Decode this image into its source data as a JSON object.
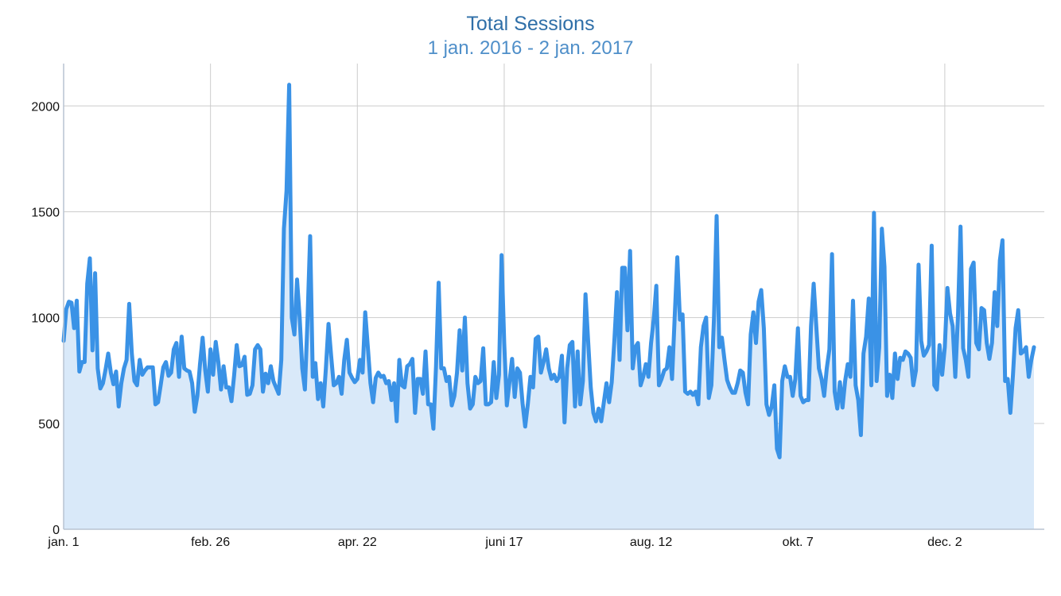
{
  "chart_data": {
    "type": "area",
    "title": "Total Sessions",
    "subtitle": "1 jan. 2016 - 2 jan. 2017",
    "x_tick_labels": [
      "jan. 1",
      "feb. 26",
      "apr. 22",
      "juni 17",
      "aug. 12",
      "okt. 7",
      "dec. 2"
    ],
    "y_ticks": [
      0,
      500,
      1000,
      1500,
      2000
    ],
    "ylim": [
      0,
      2200
    ],
    "grid": true,
    "x_start": "2016-01-01",
    "x_end": "2017-01-02",
    "colors": {
      "line": "#3a92e6",
      "fill": "#d9e9f9",
      "grid": "#cccccc",
      "axis": "#b8c4d2"
    },
    "values": [
      890,
      1040,
      1075,
      1070,
      950,
      1080,
      745,
      790,
      790,
      1160,
      1280,
      845,
      1210,
      760,
      665,
      690,
      755,
      830,
      740,
      685,
      745,
      580,
      690,
      760,
      800,
      1065,
      830,
      700,
      680,
      800,
      730,
      750,
      765,
      765,
      765,
      590,
      600,
      680,
      765,
      790,
      725,
      740,
      850,
      880,
      720,
      910,
      760,
      750,
      745,
      690,
      555,
      630,
      780,
      905,
      750,
      650,
      850,
      730,
      885,
      790,
      660,
      770,
      670,
      670,
      605,
      725,
      870,
      770,
      775,
      815,
      635,
      640,
      680,
      850,
      870,
      850,
      650,
      735,
      690,
      770,
      700,
      670,
      640,
      800,
      1420,
      1600,
      2100,
      1000,
      920,
      1180,
      1000,
      760,
      660,
      990,
      1385,
      720,
      785,
      615,
      690,
      580,
      760,
      970,
      820,
      680,
      690,
      720,
      640,
      800,
      895,
      740,
      715,
      695,
      710,
      800,
      740,
      1025,
      860,
      690,
      600,
      715,
      740,
      720,
      725,
      690,
      700,
      610,
      690,
      510,
      800,
      680,
      670,
      770,
      780,
      805,
      550,
      710,
      710,
      640,
      840,
      590,
      590,
      475,
      770,
      1165,
      760,
      760,
      700,
      720,
      585,
      630,
      740,
      940,
      750,
      1000,
      690,
      570,
      590,
      720,
      690,
      700,
      855,
      590,
      590,
      600,
      790,
      620,
      730,
      1295,
      880,
      585,
      695,
      805,
      625,
      760,
      740,
      595,
      485,
      590,
      720,
      670,
      900,
      910,
      740,
      790,
      850,
      760,
      710,
      730,
      700,
      720,
      820,
      505,
      760,
      870,
      885,
      580,
      840,
      590,
      700,
      1110,
      890,
      670,
      550,
      510,
      570,
      510,
      600,
      690,
      600,
      695,
      890,
      1120,
      800,
      1235,
      1235,
      940,
      1315,
      760,
      860,
      880,
      680,
      720,
      780,
      720,
      880,
      990,
      1150,
      680,
      710,
      750,
      760,
      860,
      710,
      1000,
      1285,
      990,
      1015,
      650,
      640,
      650,
      635,
      650,
      590,
      860,
      960,
      1000,
      620,
      680,
      1000,
      1480,
      860,
      905,
      800,
      705,
      670,
      645,
      645,
      690,
      750,
      740,
      645,
      590,
      920,
      1025,
      880,
      1075,
      1130,
      950,
      590,
      540,
      580,
      680,
      380,
      340,
      700,
      770,
      720,
      720,
      630,
      710,
      950,
      630,
      600,
      610,
      610,
      960,
      1160,
      960,
      760,
      710,
      630,
      760,
      850,
      1300,
      650,
      570,
      695,
      575,
      700,
      780,
      720,
      1080,
      680,
      610,
      445,
      830,
      910,
      1090,
      680,
      1495,
      700,
      860,
      1420,
      1240,
      630,
      730,
      620,
      830,
      710,
      810,
      800,
      840,
      830,
      810,
      680,
      750,
      1250,
      890,
      820,
      840,
      870,
      1340,
      680,
      660,
      870,
      730,
      860,
      1140,
      1020,
      960,
      720,
      1000,
      1430,
      855,
      800,
      720,
      1230,
      1260,
      880,
      850,
      1045,
      1035,
      880,
      805,
      880,
      1120,
      960,
      1270,
      1365,
      700,
      710,
      550,
      730,
      950,
      1035,
      830,
      840,
      860,
      720,
      800,
      860
    ]
  }
}
